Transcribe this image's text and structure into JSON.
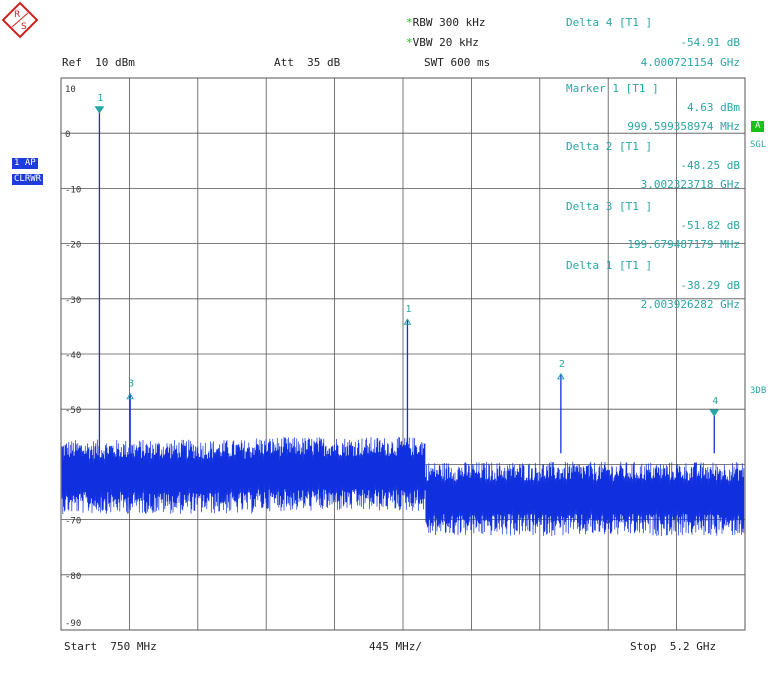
{
  "header": {
    "rbw_star": "*",
    "rbw": "RBW 300 kHz",
    "vbw_star": "*",
    "vbw": "VBW 20 kHz",
    "ref": "Ref  10 dBm",
    "att": "Att  35 dB",
    "swt": "SWT 600 ms"
  },
  "markers_panel": [
    {
      "title": "Delta 4 [T1 ]",
      "value": "-54.91 dB",
      "freq": "4.000721154 GHz"
    },
    {
      "title": "Marker 1 [T1 ]",
      "value": "4.63 dBm",
      "freq": "999.599358974 MHz"
    },
    {
      "title": "Delta 2 [T1 ]",
      "value": "-48.25 dB",
      "freq": "3.002323718 GHz"
    },
    {
      "title": "Delta 3 [T1 ]",
      "value": "-51.82 dB",
      "freq": "199.679487179 MHz"
    },
    {
      "title": "Delta 1 [T1 ]",
      "value": "-38.29 dB",
      "freq": "2.003926282 GHz"
    }
  ],
  "left_labels": {
    "trace": "1 AP",
    "mode": "CLRWR"
  },
  "right_labels": {
    "a": "A",
    "sgl": "SGL",
    "three_db": "3DB"
  },
  "footer": {
    "start": "Start  750 MHz",
    "div": "445 MHz/",
    "stop": "Stop  5.2 GHz"
  },
  "colors": {
    "trace": "#1030e0",
    "marker": "#2aa5a5",
    "grid": "#555555"
  },
  "chart_data": {
    "type": "line",
    "xlabel": "",
    "ylabel": "",
    "x_start_mhz": 750,
    "x_div_mhz": 445,
    "x_stop_mhz": 5200,
    "ylim": [
      -90,
      10
    ],
    "y_ticks": [
      10,
      0,
      -10,
      -20,
      -30,
      -40,
      -50,
      -60,
      -70,
      -80,
      -90
    ],
    "y_tick_labels": [
      "10",
      "0",
      "-10",
      "-20",
      "-30",
      "-40",
      "-50",
      "",
      "-70",
      "-80",
      "-90"
    ],
    "grid": true,
    "noise_floor_segments": [
      {
        "from_mhz": 750,
        "to_mhz": 3120,
        "level_dbm": -61
      },
      {
        "from_mhz": 3120,
        "to_mhz": 5200,
        "level_dbm": -65
      }
    ],
    "peaks": [
      {
        "marker": "1",
        "freq_mhz": 1000,
        "level_dbm": 4.6,
        "symbol": "filled"
      },
      {
        "marker": "3",
        "freq_mhz": 1200,
        "level_dbm": -47.2,
        "symbol": "open"
      },
      {
        "marker": "1",
        "freq_mhz": 3004,
        "level_dbm": -33.7,
        "symbol": "open"
      },
      {
        "marker": "2",
        "freq_mhz": 4002,
        "level_dbm": -43.6,
        "symbol": "open"
      },
      {
        "marker": "4",
        "freq_mhz": 5000,
        "level_dbm": -50.3,
        "symbol": "filled"
      }
    ]
  }
}
